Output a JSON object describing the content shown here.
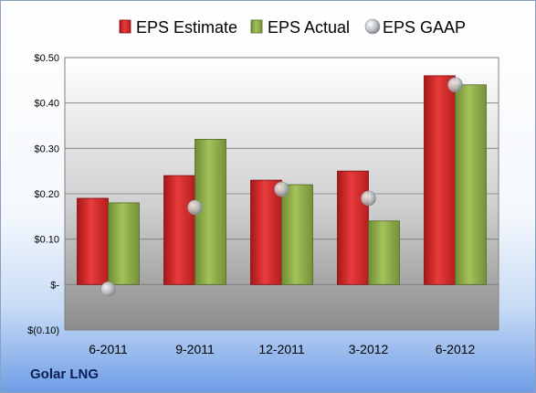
{
  "company": "Golar LNG",
  "chart_data": {
    "type": "bar",
    "categories": [
      "6-2011",
      "9-2011",
      "12-2011",
      "3-2012",
      "6-2012"
    ],
    "series": [
      {
        "name": "EPS Estimate",
        "kind": "bar",
        "color": "#d42a2a",
        "values": [
          0.19,
          0.24,
          0.23,
          0.25,
          0.46
        ]
      },
      {
        "name": "EPS Actual",
        "kind": "bar",
        "color": "#8fb04a",
        "values": [
          0.18,
          0.32,
          0.22,
          0.14,
          0.44
        ]
      },
      {
        "name": "EPS GAAP",
        "kind": "marker",
        "color": "#b9bcc2",
        "values": [
          -0.01,
          0.17,
          0.21,
          0.19,
          0.44
        ]
      }
    ],
    "yticks": [
      {
        "value": 0.5,
        "label": "$0.50"
      },
      {
        "value": 0.4,
        "label": "$0.40"
      },
      {
        "value": 0.3,
        "label": "$0.30"
      },
      {
        "value": 0.2,
        "label": "$0.20"
      },
      {
        "value": 0.1,
        "label": "$0.10"
      },
      {
        "value": 0.0,
        "label": "$-"
      },
      {
        "value": -0.1,
        "label": "$(0.10)"
      }
    ],
    "ylim": [
      -0.1,
      0.5
    ],
    "grid": true,
    "legend_position": "top"
  }
}
